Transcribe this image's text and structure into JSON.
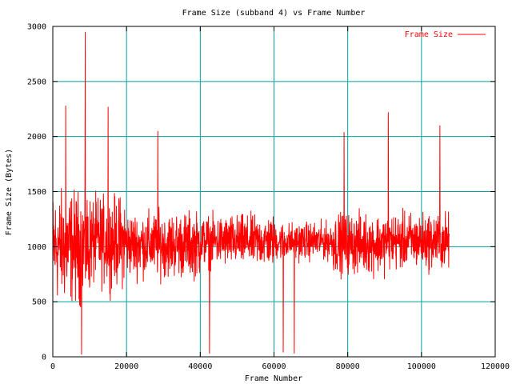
{
  "colors": {
    "series": "#ff0000",
    "grid": "#00a0a0",
    "axis": "#000000",
    "background": "#ffffff"
  },
  "chart_data": {
    "type": "line",
    "title": "Frame Size (subband 4) vs Frame Number",
    "xlabel": "Frame Number",
    "ylabel": "Frame Size (Bytes)",
    "xlim": [
      0,
      120000
    ],
    "ylim": [
      0,
      3000
    ],
    "xticks": [
      0,
      20000,
      40000,
      60000,
      80000,
      100000,
      120000
    ],
    "yticks": [
      0,
      500,
      1000,
      1500,
      2000,
      2500,
      3000
    ],
    "x_tick_labels": [
      "0",
      "20000",
      "40000",
      "60000",
      "80000",
      "100000",
      "120000"
    ],
    "y_tick_labels": [
      "0",
      "500",
      "1000",
      "1500",
      "2000",
      "2500",
      "3000"
    ],
    "grid": true,
    "legend_position": "top-right",
    "series": [
      {
        "name": "Frame Size",
        "color": "#ff0000",
        "x_range": [
          0,
          107500
        ],
        "mean": 1050,
        "notable_points": [
          {
            "x": 8800,
            "y": 2950
          },
          {
            "x": 3500,
            "y": 2280
          },
          {
            "x": 15000,
            "y": 2270
          },
          {
            "x": 91000,
            "y": 2220
          },
          {
            "x": 105000,
            "y": 2100
          },
          {
            "x": 28500,
            "y": 2050
          },
          {
            "x": 79000,
            "y": 2040
          },
          {
            "x": 7800,
            "y": 20
          },
          {
            "x": 42500,
            "y": 30
          },
          {
            "x": 62500,
            "y": 40
          },
          {
            "x": 65500,
            "y": 30
          }
        ],
        "segments": [
          {
            "x0": 0,
            "x1": 10000,
            "center": 1000,
            "spread": 650
          },
          {
            "x0": 10000,
            "x1": 20000,
            "center": 1050,
            "spread": 520
          },
          {
            "x0": 20000,
            "x1": 40000,
            "center": 1020,
            "spread": 380
          },
          {
            "x0": 40000,
            "x1": 60000,
            "center": 1050,
            "spread": 300
          },
          {
            "x0": 60000,
            "x1": 76000,
            "center": 1050,
            "spread": 220
          },
          {
            "x0": 76000,
            "x1": 90000,
            "center": 1030,
            "spread": 350
          },
          {
            "x0": 90000,
            "x1": 107500,
            "center": 1050,
            "spread": 330
          }
        ]
      }
    ]
  }
}
